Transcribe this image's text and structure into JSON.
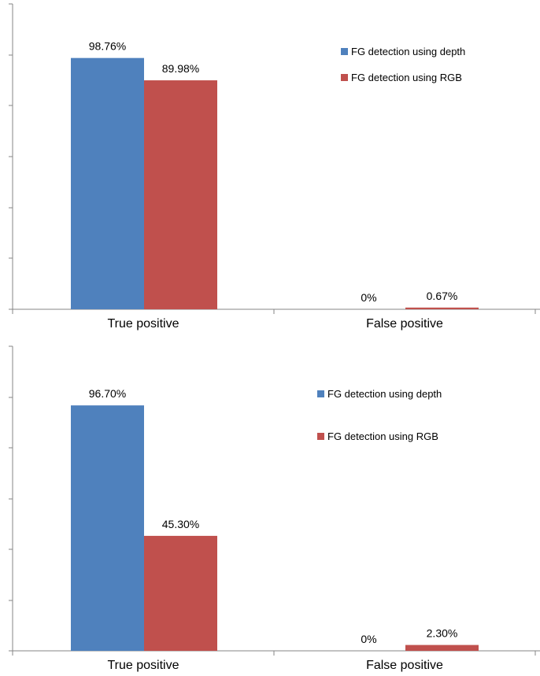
{
  "colors": {
    "depth": "#4F81BD",
    "rgb": "#C0504D",
    "axis": "#868686"
  },
  "chart_data": [
    {
      "type": "bar",
      "categories": [
        "True positive",
        "False positive"
      ],
      "series": [
        {
          "name": "FG detection using depth",
          "values": [
            98.76,
            0
          ],
          "labels": [
            "98.76%",
            "0%"
          ]
        },
        {
          "name": "FG detection using RGB",
          "values": [
            89.98,
            0.67
          ],
          "labels": [
            "89.98%",
            "0.67%"
          ]
        }
      ],
      "ylim": [
        0,
        120
      ],
      "y_tick_count": 6,
      "legend": "top-right",
      "grid": false
    },
    {
      "type": "bar",
      "categories": [
        "True positive",
        "False positive"
      ],
      "series": [
        {
          "name": "FG detection using depth",
          "values": [
            96.7,
            0
          ],
          "labels": [
            "96.70%",
            "0%"
          ]
        },
        {
          "name": "FG detection using RGB",
          "values": [
            45.3,
            2.3
          ],
          "labels": [
            "45.30%",
            "2.30%"
          ]
        }
      ],
      "ylim": [
        0,
        120
      ],
      "y_tick_count": 6,
      "legend": "top-right",
      "grid": false
    }
  ]
}
